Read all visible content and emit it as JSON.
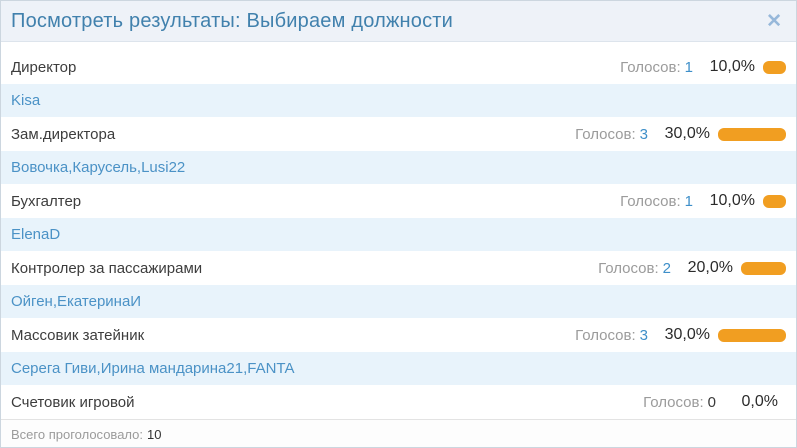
{
  "window": {
    "title": "Посмотреть результаты: Выбираем должности",
    "close_icon": "✕"
  },
  "poll": {
    "votes_label": "Голосов:",
    "voters_separator": ", ",
    "rows": [
      {
        "option": "Директор",
        "votes": 1,
        "percent": "10,0%",
        "percent_value": 10,
        "voters": [
          "Kisa"
        ]
      },
      {
        "option": "Зам.директора",
        "votes": 3,
        "percent": "30,0%",
        "percent_value": 30,
        "voters": [
          "Вовочка",
          "Карусель",
          "Lusi22"
        ]
      },
      {
        "option": "Бухгалтер",
        "votes": 1,
        "percent": "10,0%",
        "percent_value": 10,
        "voters": [
          "ElenaD"
        ]
      },
      {
        "option": "Контролер за пассажирами",
        "votes": 2,
        "percent": "20,0%",
        "percent_value": 20,
        "voters": [
          "Ойген",
          "ЕкатеринаИ"
        ]
      },
      {
        "option": "Массовик затейник",
        "votes": 3,
        "percent": "30,0%",
        "percent_value": 30,
        "voters": [
          "Серега Гиви",
          "Ирина мандарина21",
          "FANTA"
        ]
      },
      {
        "option": "Счетовик игровой",
        "votes": 0,
        "percent": "0,0%",
        "percent_value": 0,
        "voters": []
      }
    ],
    "footer": {
      "total_label": "Всего проголосовало:",
      "total_value": "10"
    }
  },
  "colors": {
    "bar_orange": "#F19E21",
    "link_blue": "#3E8FC9",
    "title_blue": "#4181AD",
    "close_blue": "#97B8DA",
    "voter_row_bg": "#E8F3FB",
    "voter_text_blue": "#4B92C6"
  }
}
